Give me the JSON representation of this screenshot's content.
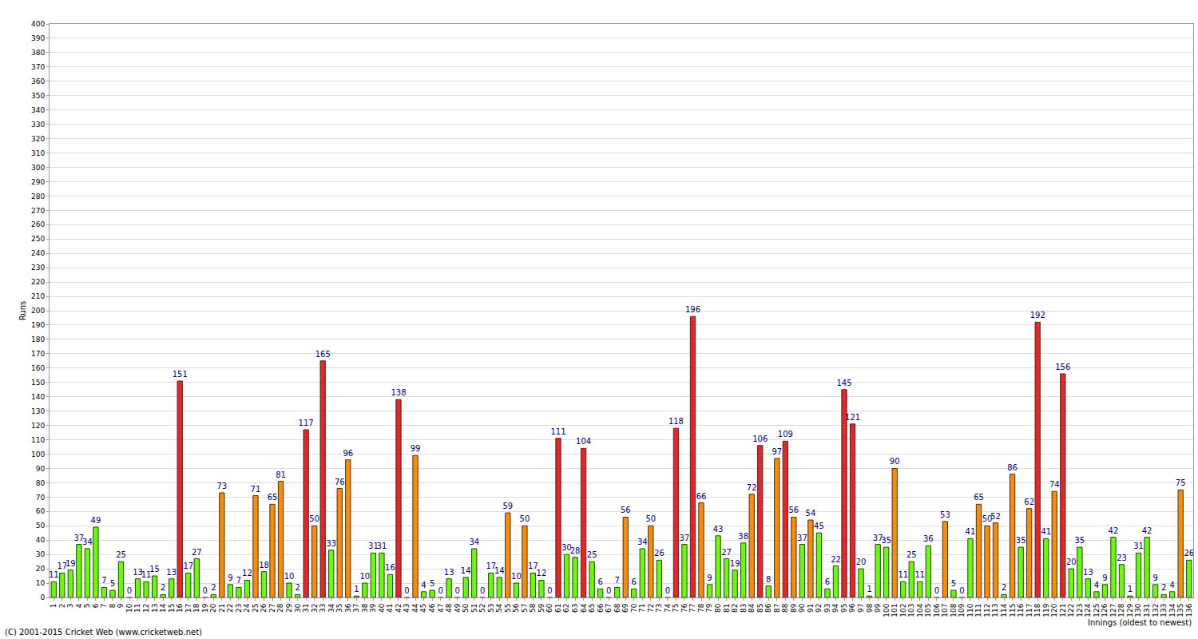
{
  "chart_data": {
    "type": "bar",
    "y_label": "Runs",
    "x_label": "Innings (oldest to newest)",
    "footer": "(C) 2001-2015 Cricket Web (www.cricketweb.net)",
    "categories": [
      "1",
      "2",
      "3",
      "4",
      "5",
      "6",
      "7",
      "8",
      "9",
      "10",
      "11",
      "12",
      "13",
      "14",
      "15",
      "16",
      "17",
      "18",
      "19",
      "20",
      "21",
      "22",
      "23",
      "24",
      "25",
      "26",
      "27",
      "28",
      "29",
      "30",
      "31",
      "32",
      "33",
      "34",
      "35",
      "36",
      "37",
      "38",
      "39",
      "40",
      "41",
      "42",
      "43",
      "44",
      "45",
      "46",
      "47",
      "48",
      "49",
      "50",
      "51",
      "52",
      "53",
      "54",
      "55",
      "56",
      "57",
      "58",
      "59",
      "60",
      "61",
      "62",
      "63",
      "64",
      "65",
      "66",
      "67",
      "68",
      "69",
      "70",
      "71",
      "72",
      "73",
      "74",
      "75",
      "76",
      "77",
      "78",
      "79",
      "80",
      "81",
      "82",
      "83",
      "84",
      "85",
      "86",
      "87",
      "88",
      "89",
      "90",
      "91",
      "92",
      "93",
      "94",
      "95",
      "96",
      "97",
      "98",
      "99",
      "100",
      "101",
      "102",
      "103",
      "104",
      "105",
      "106",
      "107",
      "108",
      "109",
      "110",
      "111",
      "112",
      "113",
      "114",
      "115",
      "116",
      "117",
      "118",
      "119",
      "120",
      "121",
      "122",
      "123",
      "124",
      "125",
      "126",
      "127",
      "128",
      "129",
      "130",
      "131",
      "132",
      "133",
      "134",
      "135",
      "136"
    ],
    "values": [
      11,
      17,
      19,
      37,
      34,
      49,
      7,
      5,
      25,
      0,
      13,
      11,
      15,
      2,
      13,
      151,
      17,
      27,
      0,
      2,
      73,
      9,
      7,
      12,
      71,
      18,
      65,
      81,
      10,
      2,
      117,
      50,
      165,
      33,
      76,
      96,
      1,
      10,
      31,
      31,
      16,
      138,
      0,
      99,
      4,
      5,
      0,
      13,
      0,
      14,
      34,
      0,
      17,
      14,
      59,
      10,
      50,
      17,
      12,
      0,
      111,
      30,
      28,
      104,
      25,
      6,
      0,
      7,
      56,
      6,
      34,
      50,
      26,
      0,
      118,
      37,
      196,
      66,
      9,
      43,
      27,
      19,
      38,
      72,
      106,
      8,
      97,
      109,
      56,
      37,
      54,
      45,
      6,
      22,
      145,
      121,
      20,
      1,
      37,
      35,
      90,
      11,
      25,
      11,
      36,
      0,
      53,
      5,
      0,
      41,
      65,
      50,
      52,
      2,
      86,
      35,
      62,
      192,
      41,
      74,
      156,
      20,
      35,
      13,
      4,
      9,
      42,
      23,
      1,
      31,
      42,
      9,
      2,
      4,
      75,
      26
    ],
    "colors": [
      "#66ff00",
      "#66ff00",
      "#66ff00",
      "#66ff00",
      "#66ff00",
      "#66ff00",
      "#66ff00",
      "#66ff00",
      "#66ff00",
      "#66ff00",
      "#66ff00",
      "#66ff00",
      "#66ff00",
      "#66ff00",
      "#66ff00",
      "#ee2222",
      "#66ff00",
      "#66ff00",
      "#66ff00",
      "#66ff00",
      "#ff8c00",
      "#66ff00",
      "#66ff00",
      "#66ff00",
      "#ff8c00",
      "#66ff00",
      "#ff8c00",
      "#ff8c00",
      "#66ff00",
      "#66ff00",
      "#ee2222",
      "#ff8c00",
      "#ee2222",
      "#66ff00",
      "#ff8c00",
      "#ff8c00",
      "#66ff00",
      "#66ff00",
      "#66ff00",
      "#66ff00",
      "#66ff00",
      "#ee2222",
      "#66ff00",
      "#ff8c00",
      "#66ff00",
      "#66ff00",
      "#66ff00",
      "#66ff00",
      "#66ff00",
      "#66ff00",
      "#66ff00",
      "#66ff00",
      "#66ff00",
      "#66ff00",
      "#ff8c00",
      "#66ff00",
      "#ff8c00",
      "#66ff00",
      "#66ff00",
      "#66ff00",
      "#ee2222",
      "#66ff00",
      "#66ff00",
      "#ee2222",
      "#66ff00",
      "#66ff00",
      "#66ff00",
      "#66ff00",
      "#ff8c00",
      "#66ff00",
      "#66ff00",
      "#ff8c00",
      "#66ff00",
      "#66ff00",
      "#ee2222",
      "#66ff00",
      "#ee2222",
      "#ff8c00",
      "#66ff00",
      "#66ff00",
      "#66ff00",
      "#66ff00",
      "#66ff00",
      "#ff8c00",
      "#ee2222",
      "#66ff00",
      "#ff8c00",
      "#ee2222",
      "#ff8c00",
      "#66ff00",
      "#ff8c00",
      "#66ff00",
      "#66ff00",
      "#66ff00",
      "#ee2222",
      "#ee2222",
      "#66ff00",
      "#66ff00",
      "#66ff00",
      "#66ff00",
      "#ff8c00",
      "#66ff00",
      "#66ff00",
      "#66ff00",
      "#66ff00",
      "#66ff00",
      "#ff8c00",
      "#66ff00",
      "#66ff00",
      "#66ff00",
      "#ff8c00",
      "#ff8c00",
      "#ff8c00",
      "#66ff00",
      "#ff8c00",
      "#66ff00",
      "#ff8c00",
      "#ee2222",
      "#66ff00",
      "#ff8c00",
      "#ee2222",
      "#66ff00",
      "#66ff00",
      "#66ff00",
      "#66ff00",
      "#66ff00",
      "#66ff00",
      "#66ff00",
      "#66ff00",
      "#66ff00",
      "#66ff00",
      "#66ff00",
      "#66ff00",
      "#66ff00",
      "#ff8c00",
      "#66ff00"
    ],
    "ylim": [
      0,
      400
    ],
    "yticks": [
      0,
      10,
      20,
      30,
      40,
      50,
      60,
      70,
      80,
      90,
      100,
      110,
      120,
      130,
      140,
      150,
      160,
      170,
      180,
      190,
      200,
      210,
      220,
      230,
      240,
      250,
      260,
      270,
      280,
      290,
      300,
      310,
      320,
      330,
      340,
      350,
      360,
      370,
      380,
      390,
      400
    ],
    "grid": true,
    "data_labels": true
  }
}
